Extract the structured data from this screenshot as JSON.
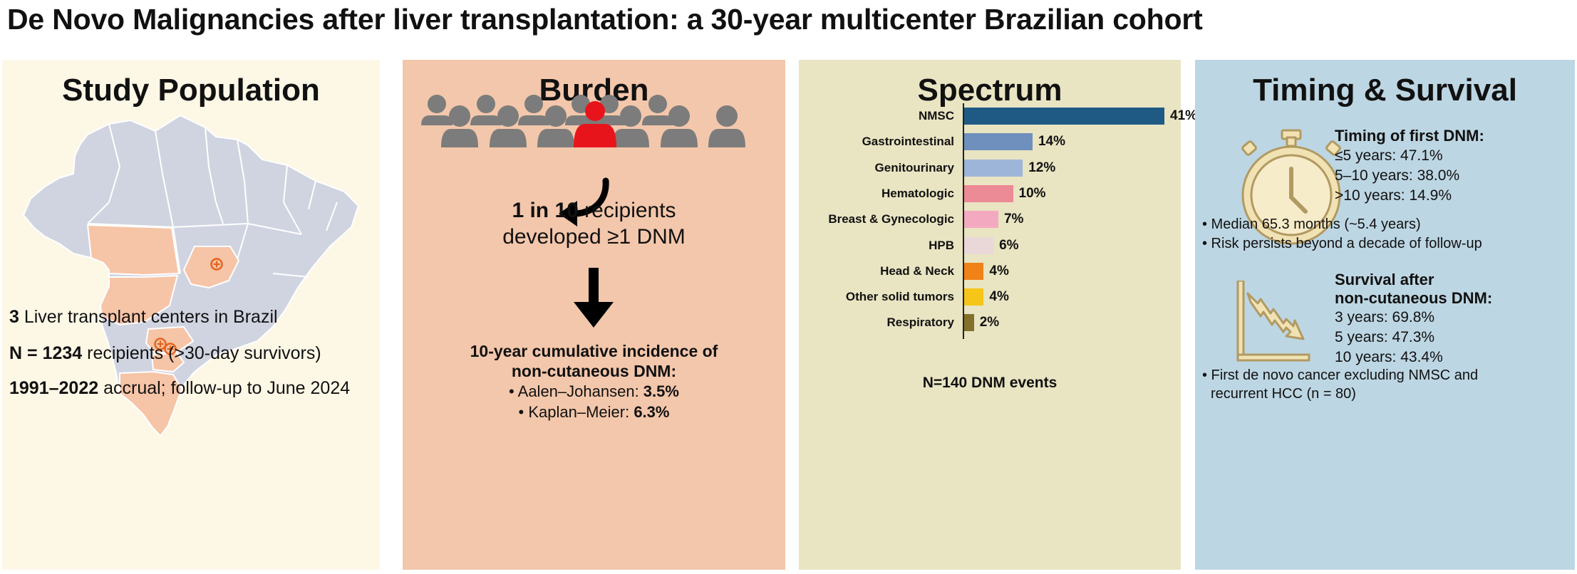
{
  "title": "De Novo Malignancies after liver transplantation: a 30-year multicenter Brazilian cohort",
  "study": {
    "heading": "Study Population",
    "centers_num": "3",
    "centers_text": " Liver transplant centers in Brazil",
    "n_bold": "N = 1234",
    "n_text": " recipients (>30-day survivors)",
    "years_bold": "1991–2022",
    "years_text": " accrual; follow-up to June 2024",
    "colors": {
      "map": "#d0d4e0",
      "highlight": "#f6c4a6",
      "marker": "#e4641c"
    },
    "icons": [
      "brazil-map-icon",
      "transplant-center-marker-icon"
    ]
  },
  "burden": {
    "heading": "Burden",
    "headline_bold": "1 in 10",
    "headline_rest": " recipients",
    "headline_line2": "developed ≥1 DNM",
    "incidence_title_l1": "10-year cumulative incidence of",
    "incidence_title_l2": "non-cutaneous DNM:",
    "aj_label": "• Aalen–Johansen: ",
    "aj_value": "3.5%",
    "km_label": "• Kaplan–Meier: ",
    "km_value": "6.3%",
    "colors": {
      "people": "#7c7c7c",
      "highlight": "#e8141b"
    },
    "icons": [
      "people-group-icon",
      "curved-arrow-icon",
      "down-arrow-icon"
    ]
  },
  "spectrum": {
    "heading": "Spectrum",
    "footer": "N=140 DNM events"
  },
  "chart_data": {
    "type": "bar",
    "orientation": "horizontal",
    "categories": [
      "NMSC",
      "Gastrointestinal",
      "Genitourinary",
      "Hematologic",
      "Breast & Gynecologic",
      "HPB",
      "Head & Neck",
      "Other solid tumors",
      "Respiratory"
    ],
    "values": [
      41,
      14,
      12,
      10,
      7,
      6,
      4,
      4,
      2
    ],
    "value_labels": [
      "41%",
      "14%",
      "12%",
      "10%",
      "7%",
      "6%",
      "4%",
      "4%",
      "2%"
    ],
    "colors": [
      "#1f5a85",
      "#6f8fbd",
      "#9db5d8",
      "#ec8a96",
      "#f3aac0",
      "#ead8d8",
      "#f08218",
      "#f5c518",
      "#83702a"
    ],
    "xlim": [
      0,
      41
    ],
    "grid": false
  },
  "timing": {
    "heading": "Timing & Survival",
    "first_title": "Timing of first DNM:",
    "first_items": [
      "≤5 years: 47.1%",
      "5–10 years: 38.0%",
      ">10 years: 14.9%"
    ],
    "bullets": [
      "• Median 65.3 months (~5.4 years)",
      "• Risk persists beyond a decade of follow-up"
    ],
    "surv_title_l1": "Survival after",
    "surv_title_l2": "non-cutaneous DNM:",
    "surv_items": [
      "3 years: 69.8%",
      "5 years: 47.3%",
      "10 years: 43.4%"
    ],
    "foot_l1": "• First de novo cancer excluding NMSC and",
    "foot_l2": "recurrent HCC (n = 80)",
    "colors": {
      "icon_fill": "#f1e2b4",
      "icon_stroke": "#b19a62"
    },
    "icons": [
      "stopwatch-icon",
      "declining-chart-icon"
    ]
  }
}
